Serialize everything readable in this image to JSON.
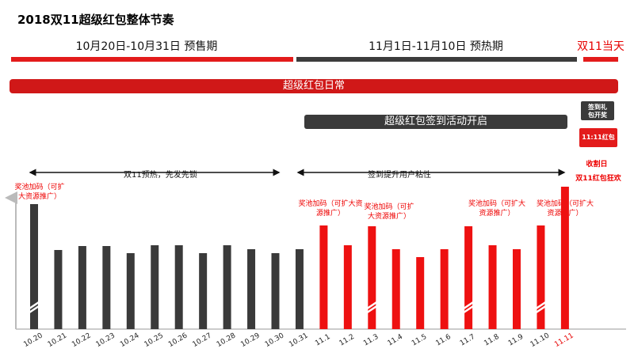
{
  "title": "2018双11超级红包整体节奏",
  "phases": {
    "presale": "10月20日-10月31日 预售期",
    "warmup": "11月1日-11月10日 预热期",
    "double11": "双11当天"
  },
  "bars": {
    "daily": "超级红包日常",
    "checkin": "超级红包签到活动开启",
    "checkin_prize": "签到礼包开奖",
    "hongbao_1111": "11:11红包"
  },
  "spans": {
    "warmup_span": "双11预热，先发先锁",
    "checkin_span": "签到提升用户粘性",
    "collect_day": "收割日"
  },
  "annotations": {
    "pool_boost": "奖池加码（可扩大资源推广）",
    "double11_carnival": "双11红包狂欢"
  },
  "colors": {
    "red": "#ee1111",
    "dark": "#333333",
    "bar_dark": "#3a3a3a",
    "accent_text": "#e60000"
  },
  "chart_data": {
    "type": "bar",
    "categories": [
      "10.20",
      "10.21",
      "10.22",
      "10.23",
      "10.24",
      "10.25",
      "10.26",
      "10.27",
      "10.28",
      "10.29",
      "10.30",
      "10.31",
      "11.1",
      "11.2",
      "11.3",
      "11.4",
      "11.5",
      "11.6",
      "11.7",
      "11.8",
      "11.9",
      "11.10",
      "11.11"
    ],
    "values": [
      158,
      100,
      105,
      105,
      96,
      106,
      106,
      96,
      106,
      101,
      96,
      101,
      131,
      106,
      130,
      101,
      91,
      101,
      130,
      106,
      101,
      131,
      180
    ],
    "colors": [
      "dark",
      "dark",
      "dark",
      "dark",
      "dark",
      "dark",
      "dark",
      "dark",
      "dark",
      "dark",
      "dark",
      "dark",
      "red",
      "red",
      "red",
      "red",
      "red",
      "red",
      "red",
      "red",
      "red",
      "red",
      "red"
    ],
    "axis_breaks": [
      "10.20",
      "11.3",
      "11.7",
      "11.10"
    ],
    "ylim": [
      0,
      180
    ],
    "title": "",
    "xlabel": "",
    "ylabel": ""
  }
}
